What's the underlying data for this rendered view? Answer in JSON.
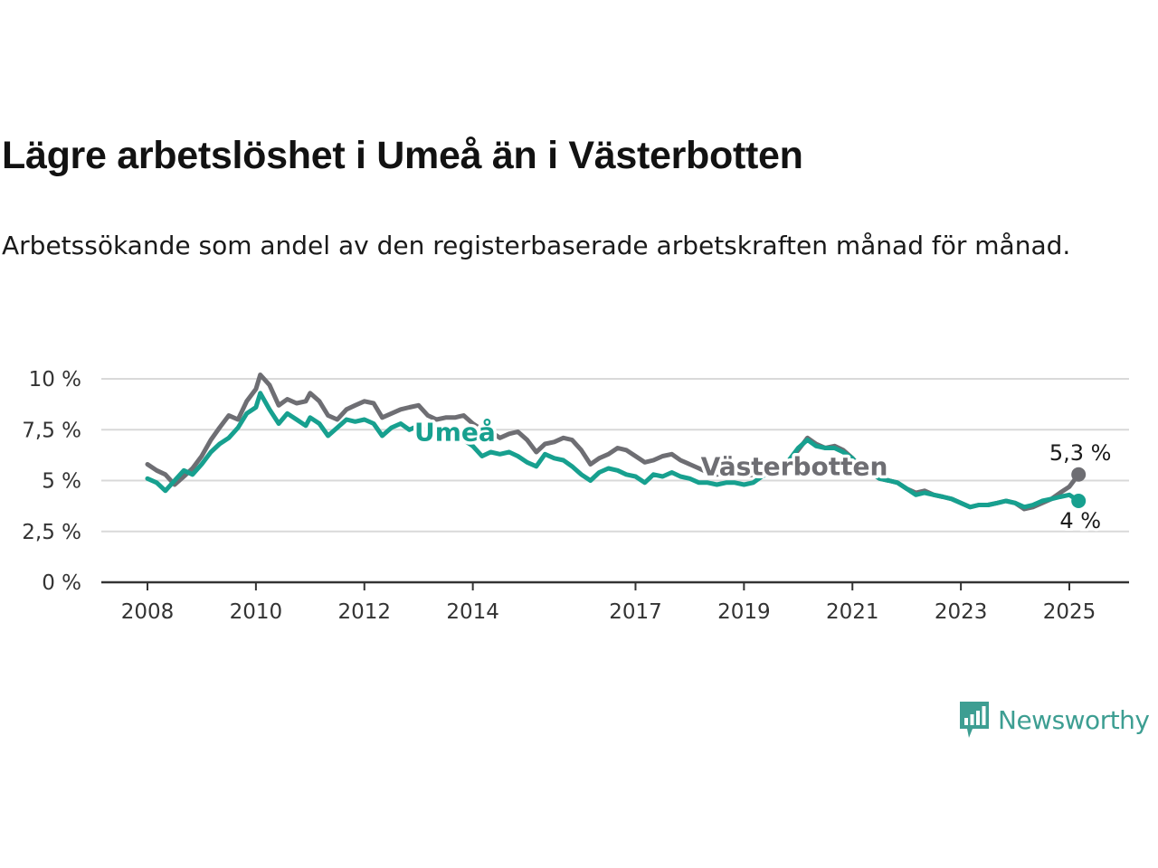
{
  "title": "Lägre arbetslöshet i Umeå än i Västerbotten",
  "subtitle": "Arbetssökande som andel av den registerbaserade arbetskraften månad för månad.",
  "brand": {
    "name": "Newsworthy",
    "color": "#3d9e92"
  },
  "chart_data": {
    "type": "line",
    "ylim": [
      0,
      10
    ],
    "xlim": [
      2008,
      2025
    ],
    "y_ticks": [
      {
        "value": 0,
        "label": "0 %"
      },
      {
        "value": 2.5,
        "label": "2,5 %"
      },
      {
        "value": 5,
        "label": "5 %"
      },
      {
        "value": 7.5,
        "label": "7,5 %"
      },
      {
        "value": 10,
        "label": "10 %"
      }
    ],
    "x_ticks": [
      {
        "value": 2008,
        "label": "2008"
      },
      {
        "value": 2010,
        "label": "2010"
      },
      {
        "value": 2012,
        "label": "2012"
      },
      {
        "value": 2014,
        "label": "2014"
      },
      {
        "value": 2017,
        "label": "2017"
      },
      {
        "value": 2019,
        "label": "2019"
      },
      {
        "value": 2021,
        "label": "2021"
      },
      {
        "value": 2023,
        "label": "2023"
      },
      {
        "value": 2025,
        "label": "2025"
      }
    ],
    "grid": true,
    "series": [
      {
        "name": "Västerbotten",
        "color": "#6e6e73",
        "end_label": "5,3 %",
        "points": [
          [
            2008.0,
            5.8
          ],
          [
            2008.17,
            5.5
          ],
          [
            2008.33,
            5.3
          ],
          [
            2008.5,
            4.8
          ],
          [
            2008.67,
            5.2
          ],
          [
            2008.83,
            5.6
          ],
          [
            2009.0,
            6.2
          ],
          [
            2009.17,
            7.0
          ],
          [
            2009.33,
            7.6
          ],
          [
            2009.5,
            8.2
          ],
          [
            2009.67,
            8.0
          ],
          [
            2009.83,
            8.9
          ],
          [
            2010.0,
            9.5
          ],
          [
            2010.08,
            10.2
          ],
          [
            2010.25,
            9.7
          ],
          [
            2010.42,
            8.7
          ],
          [
            2010.58,
            9.0
          ],
          [
            2010.75,
            8.8
          ],
          [
            2010.92,
            8.9
          ],
          [
            2011.0,
            9.3
          ],
          [
            2011.17,
            8.9
          ],
          [
            2011.33,
            8.2
          ],
          [
            2011.5,
            8.0
          ],
          [
            2011.67,
            8.5
          ],
          [
            2011.83,
            8.7
          ],
          [
            2012.0,
            8.9
          ],
          [
            2012.17,
            8.8
          ],
          [
            2012.33,
            8.1
          ],
          [
            2012.5,
            8.3
          ],
          [
            2012.67,
            8.5
          ],
          [
            2012.83,
            8.6
          ],
          [
            2013.0,
            8.7
          ],
          [
            2013.17,
            8.2
          ],
          [
            2013.33,
            8.0
          ],
          [
            2013.5,
            8.1
          ],
          [
            2013.67,
            8.1
          ],
          [
            2013.83,
            8.2
          ],
          [
            2014.0,
            7.8
          ],
          [
            2014.17,
            7.5
          ],
          [
            2014.33,
            7.4
          ],
          [
            2014.5,
            7.1
          ],
          [
            2014.67,
            7.3
          ],
          [
            2014.83,
            7.4
          ],
          [
            2015.0,
            7.0
          ],
          [
            2015.17,
            6.4
          ],
          [
            2015.33,
            6.8
          ],
          [
            2015.5,
            6.9
          ],
          [
            2015.67,
            7.1
          ],
          [
            2015.83,
            7.0
          ],
          [
            2016.0,
            6.5
          ],
          [
            2016.17,
            5.8
          ],
          [
            2016.33,
            6.1
          ],
          [
            2016.5,
            6.3
          ],
          [
            2016.67,
            6.6
          ],
          [
            2016.83,
            6.5
          ],
          [
            2017.0,
            6.2
          ],
          [
            2017.17,
            5.9
          ],
          [
            2017.33,
            6.0
          ],
          [
            2017.5,
            6.2
          ],
          [
            2017.67,
            6.3
          ],
          [
            2017.83,
            6.0
          ],
          [
            2018.0,
            5.8
          ],
          [
            2018.17,
            5.6
          ],
          [
            2018.33,
            5.4
          ],
          [
            2018.5,
            5.3
          ],
          [
            2018.67,
            5.4
          ],
          [
            2018.83,
            5.3
          ],
          [
            2019.0,
            5.2
          ],
          [
            2019.17,
            5.3
          ],
          [
            2019.33,
            5.5
          ],
          [
            2019.5,
            5.6
          ],
          [
            2019.67,
            5.8
          ],
          [
            2019.83,
            6.0
          ],
          [
            2020.0,
            6.5
          ],
          [
            2020.17,
            7.1
          ],
          [
            2020.33,
            6.8
          ],
          [
            2020.5,
            6.6
          ],
          [
            2020.67,
            6.7
          ],
          [
            2020.83,
            6.5
          ],
          [
            2021.0,
            6.1
          ],
          [
            2021.17,
            5.6
          ],
          [
            2021.33,
            5.4
          ],
          [
            2021.5,
            5.1
          ],
          [
            2021.67,
            5.0
          ],
          [
            2021.83,
            4.9
          ],
          [
            2022.0,
            4.6
          ],
          [
            2022.17,
            4.4
          ],
          [
            2022.33,
            4.5
          ],
          [
            2022.5,
            4.3
          ],
          [
            2022.67,
            4.2
          ],
          [
            2022.83,
            4.1
          ],
          [
            2023.0,
            3.9
          ],
          [
            2023.17,
            3.7
          ],
          [
            2023.33,
            3.8
          ],
          [
            2023.5,
            3.8
          ],
          [
            2023.67,
            3.9
          ],
          [
            2023.83,
            4.0
          ],
          [
            2024.0,
            3.9
          ],
          [
            2024.17,
            3.6
          ],
          [
            2024.33,
            3.7
          ],
          [
            2024.5,
            3.9
          ],
          [
            2024.67,
            4.1
          ],
          [
            2024.83,
            4.4
          ],
          [
            2025.0,
            4.7
          ],
          [
            2025.17,
            5.3
          ]
        ]
      },
      {
        "name": "Umeå",
        "color": "#17a08f",
        "end_label": "4 %",
        "points": [
          [
            2008.0,
            5.1
          ],
          [
            2008.17,
            4.9
          ],
          [
            2008.33,
            4.5
          ],
          [
            2008.5,
            5.0
          ],
          [
            2008.67,
            5.5
          ],
          [
            2008.83,
            5.3
          ],
          [
            2009.0,
            5.8
          ],
          [
            2009.17,
            6.4
          ],
          [
            2009.33,
            6.8
          ],
          [
            2009.5,
            7.1
          ],
          [
            2009.67,
            7.6
          ],
          [
            2009.83,
            8.3
          ],
          [
            2010.0,
            8.6
          ],
          [
            2010.08,
            9.3
          ],
          [
            2010.25,
            8.5
          ],
          [
            2010.42,
            7.8
          ],
          [
            2010.58,
            8.3
          ],
          [
            2010.75,
            8.0
          ],
          [
            2010.92,
            7.7
          ],
          [
            2011.0,
            8.1
          ],
          [
            2011.17,
            7.8
          ],
          [
            2011.33,
            7.2
          ],
          [
            2011.5,
            7.6
          ],
          [
            2011.67,
            8.0
          ],
          [
            2011.83,
            7.9
          ],
          [
            2012.0,
            8.0
          ],
          [
            2012.17,
            7.8
          ],
          [
            2012.33,
            7.2
          ],
          [
            2012.5,
            7.6
          ],
          [
            2012.67,
            7.8
          ],
          [
            2012.83,
            7.5
          ],
          [
            2013.0,
            7.7
          ],
          [
            2013.17,
            7.4
          ],
          [
            2013.33,
            7.2
          ],
          [
            2013.5,
            7.3
          ],
          [
            2013.67,
            7.4
          ],
          [
            2013.83,
            7.0
          ],
          [
            2014.0,
            6.7
          ],
          [
            2014.17,
            6.2
          ],
          [
            2014.33,
            6.4
          ],
          [
            2014.5,
            6.3
          ],
          [
            2014.67,
            6.4
          ],
          [
            2014.83,
            6.2
          ],
          [
            2015.0,
            5.9
          ],
          [
            2015.17,
            5.7
          ],
          [
            2015.33,
            6.3
          ],
          [
            2015.5,
            6.1
          ],
          [
            2015.67,
            6.0
          ],
          [
            2015.83,
            5.7
          ],
          [
            2016.0,
            5.3
          ],
          [
            2016.17,
            5.0
          ],
          [
            2016.33,
            5.4
          ],
          [
            2016.5,
            5.6
          ],
          [
            2016.67,
            5.5
          ],
          [
            2016.83,
            5.3
          ],
          [
            2017.0,
            5.2
          ],
          [
            2017.17,
            4.9
          ],
          [
            2017.33,
            5.3
          ],
          [
            2017.5,
            5.2
          ],
          [
            2017.67,
            5.4
          ],
          [
            2017.83,
            5.2
          ],
          [
            2018.0,
            5.1
          ],
          [
            2018.17,
            4.9
          ],
          [
            2018.33,
            4.9
          ],
          [
            2018.5,
            4.8
          ],
          [
            2018.67,
            4.9
          ],
          [
            2018.83,
            4.9
          ],
          [
            2019.0,
            4.8
          ],
          [
            2019.17,
            4.9
          ],
          [
            2019.33,
            5.2
          ],
          [
            2019.5,
            5.4
          ],
          [
            2019.67,
            5.7
          ],
          [
            2019.83,
            6.0
          ],
          [
            2020.0,
            6.6
          ],
          [
            2020.17,
            7.0
          ],
          [
            2020.33,
            6.7
          ],
          [
            2020.5,
            6.6
          ],
          [
            2020.67,
            6.6
          ],
          [
            2020.83,
            6.4
          ],
          [
            2021.0,
            6.1
          ],
          [
            2021.17,
            5.5
          ],
          [
            2021.33,
            5.4
          ],
          [
            2021.5,
            5.1
          ],
          [
            2021.67,
            5.0
          ],
          [
            2021.83,
            4.9
          ],
          [
            2022.0,
            4.6
          ],
          [
            2022.17,
            4.3
          ],
          [
            2022.33,
            4.4
          ],
          [
            2022.5,
            4.3
          ],
          [
            2022.67,
            4.2
          ],
          [
            2022.83,
            4.1
          ],
          [
            2023.0,
            3.9
          ],
          [
            2023.17,
            3.7
          ],
          [
            2023.33,
            3.8
          ],
          [
            2023.5,
            3.8
          ],
          [
            2023.67,
            3.9
          ],
          [
            2023.83,
            4.0
          ],
          [
            2024.0,
            3.9
          ],
          [
            2024.17,
            3.7
          ],
          [
            2024.33,
            3.8
          ],
          [
            2024.5,
            4.0
          ],
          [
            2024.67,
            4.1
          ],
          [
            2024.83,
            4.2
          ],
          [
            2025.0,
            4.3
          ],
          [
            2025.17,
            4.0
          ]
        ]
      }
    ]
  }
}
